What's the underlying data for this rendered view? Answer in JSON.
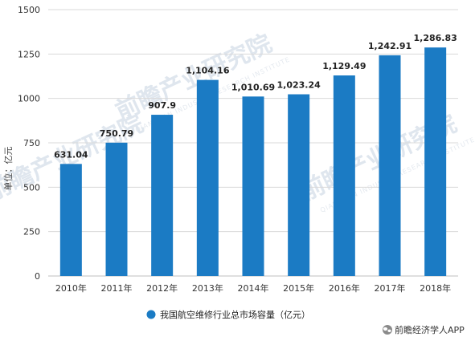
{
  "chart_data": {
    "type": "bar",
    "categories": [
      "2010年",
      "2011年",
      "2012年",
      "2013年",
      "2014年",
      "2015年",
      "2016年",
      "2017年",
      "2018年"
    ],
    "series": [
      {
        "name": "我国航空维修行业总市场容量（亿元）",
        "values": [
          631.04,
          750.79,
          907.9,
          1104.16,
          1010.69,
          1023.24,
          1129.49,
          1242.91,
          1286.83
        ],
        "labels": [
          "631.04",
          "750.79",
          "907.9",
          "1,104.16",
          "1,010.69",
          "1,023.24",
          "1,129.49",
          "1,242.91",
          "1,286.83"
        ]
      }
    ],
    "ylabel": "单位：亿元",
    "ylim": [
      0,
      1500
    ],
    "yticks": [
      "0",
      "250",
      "500",
      "750",
      "1000",
      "1250",
      "1500"
    ],
    "grid": true,
    "legend_position": "bottom",
    "bar_color": "#1b7bc4"
  },
  "watermark": {
    "text": "前瞻产业研究院",
    "subtext": "QIANZHAN INDUSTRY RESEARCH INSTITUTE"
  },
  "credit": {
    "icon": "wechat-icon",
    "text": "前瞻经济学人APP"
  }
}
